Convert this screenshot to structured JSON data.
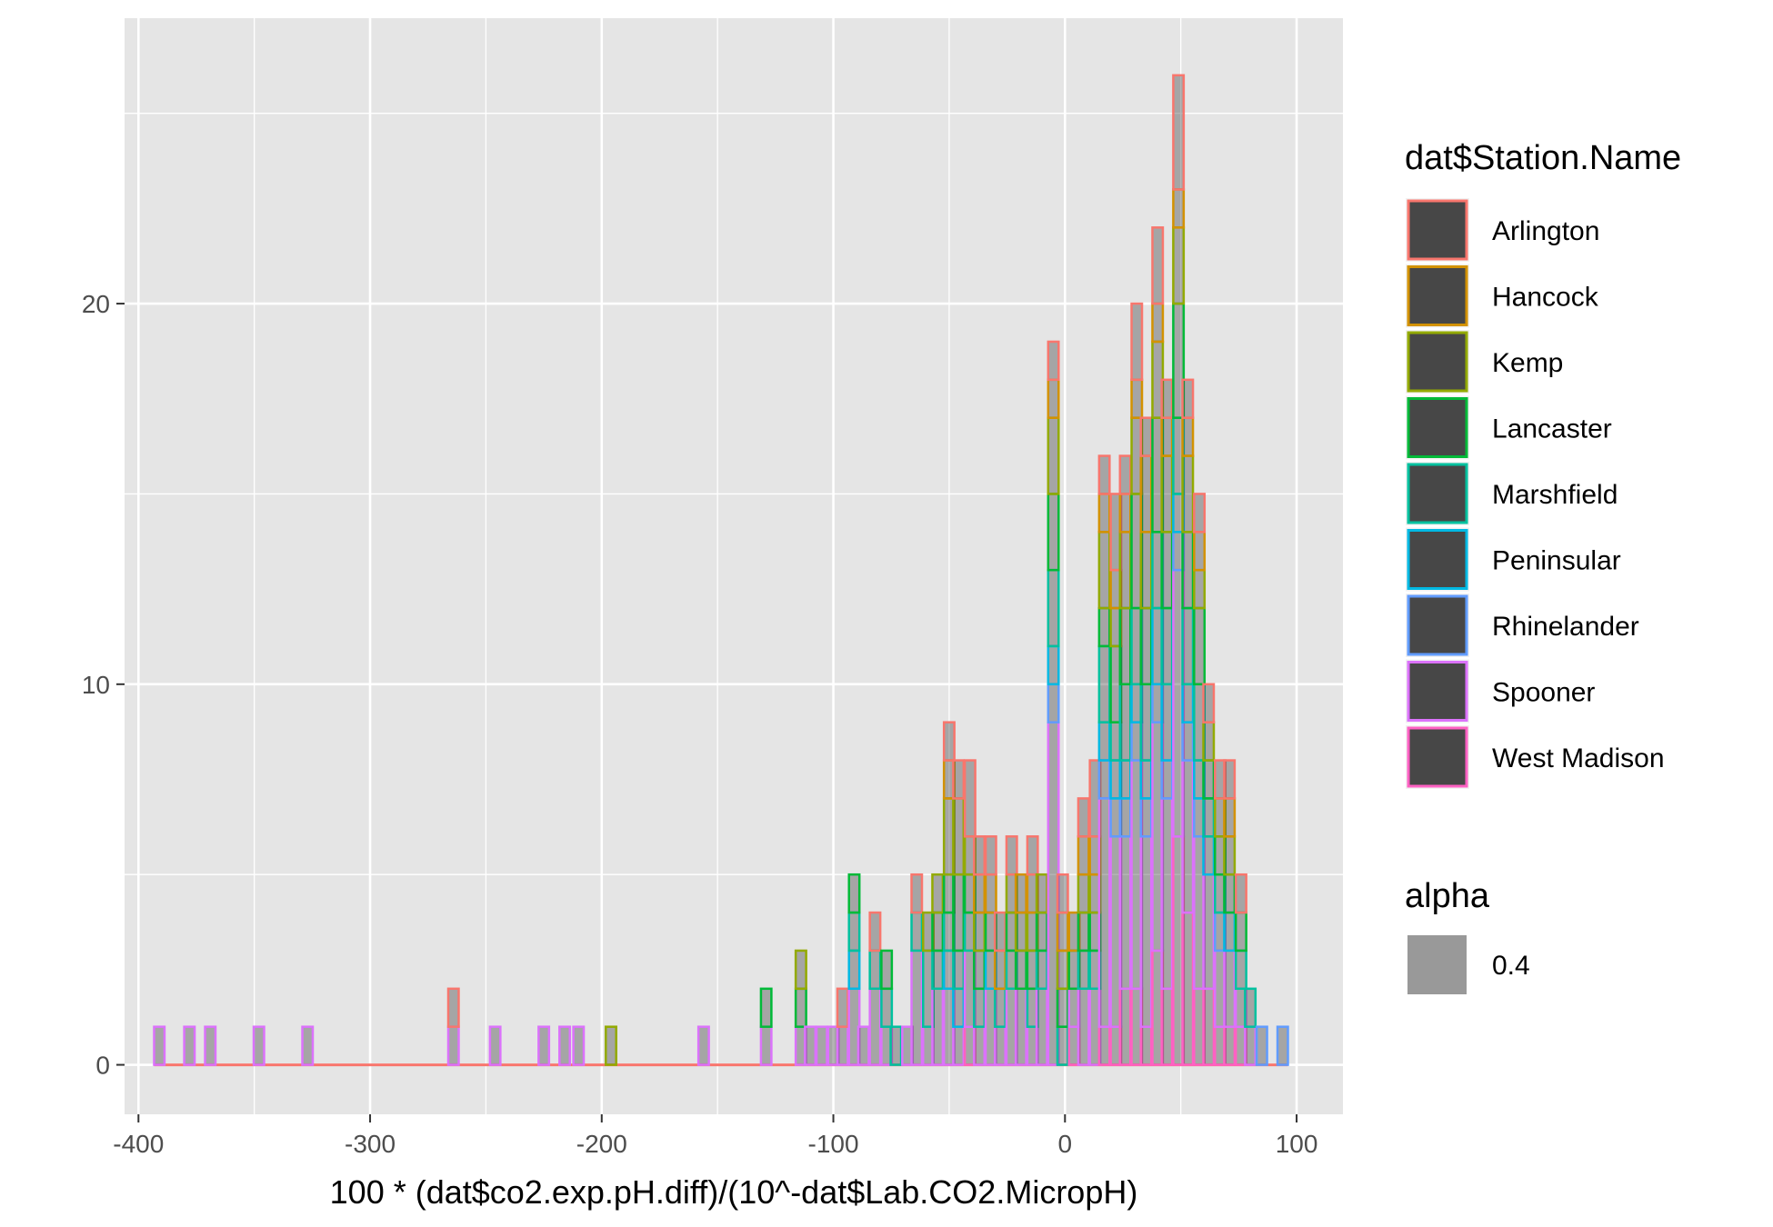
{
  "chart_data": {
    "type": "bar",
    "subtype": "stacked-histogram",
    "xlabel": "100 * (dat$co2.exp.pH.diff)/(10^-dat$Lab.CO2.MicropH)",
    "ylabel": "",
    "xlim": [
      -406,
      120
    ],
    "ylim": [
      -1.3,
      27.5
    ],
    "x_ticks": [
      -400,
      -300,
      -200,
      -100,
      0,
      100
    ],
    "x_tick_labels": [
      "-400",
      "-300",
      "-200",
      "-100",
      "0",
      "100"
    ],
    "y_ticks": [
      0,
      10,
      20
    ],
    "y_tick_labels": [
      "0",
      "10",
      "20"
    ],
    "bin_width": 4.5,
    "grid": true,
    "legend_position": "right",
    "background": "#e5e5e5",
    "fill_color": "#474747",
    "legend": {
      "color_title": "dat$Station.Name",
      "alpha_title": "alpha",
      "alpha_value": "0.4"
    },
    "series": [
      {
        "name": "Arlington",
        "color": "#f8766d"
      },
      {
        "name": "Hancock",
        "color": "#d39200"
      },
      {
        "name": "Kemp",
        "color": "#93aa00"
      },
      {
        "name": "Lancaster",
        "color": "#00ba38"
      },
      {
        "name": "Marshfield",
        "color": "#00c19f"
      },
      {
        "name": "Peninsular",
        "color": "#00b9e3"
      },
      {
        "name": "Rhinelander",
        "color": "#619cff"
      },
      {
        "name": "Spooner",
        "color": "#db72fb"
      },
      {
        "name": "West Madison",
        "color": "#ff61c3"
      }
    ],
    "bins": [
      {
        "x": -391,
        "counts": [
          0,
          0,
          0,
          0,
          0,
          0,
          0,
          1,
          0
        ]
      },
      {
        "x": -378,
        "counts": [
          0,
          0,
          0,
          0,
          0,
          0,
          0,
          1,
          0
        ]
      },
      {
        "x": -369,
        "counts": [
          0,
          0,
          0,
          0,
          0,
          0,
          0,
          1,
          0
        ]
      },
      {
        "x": -348,
        "counts": [
          0,
          0,
          0,
          0,
          0,
          0,
          0,
          1,
          0
        ]
      },
      {
        "x": -327,
        "counts": [
          0,
          0,
          0,
          0,
          0,
          0,
          0,
          1,
          0
        ]
      },
      {
        "x": -264,
        "counts": [
          1,
          0,
          0,
          0,
          0,
          0,
          0,
          1,
          0
        ]
      },
      {
        "x": -246,
        "counts": [
          0,
          0,
          0,
          0,
          0,
          0,
          0,
          1,
          0
        ]
      },
      {
        "x": -225,
        "counts": [
          0,
          0,
          0,
          0,
          0,
          0,
          0,
          1,
          0
        ]
      },
      {
        "x": -216,
        "counts": [
          0,
          0,
          0,
          0,
          0,
          0,
          0,
          1,
          0
        ]
      },
      {
        "x": -210,
        "counts": [
          0,
          0,
          0,
          0,
          0,
          0,
          0,
          1,
          0
        ]
      },
      {
        "x": -196,
        "counts": [
          0,
          0,
          1,
          0,
          0,
          0,
          0,
          0,
          0
        ]
      },
      {
        "x": -156,
        "counts": [
          0,
          0,
          0,
          0,
          0,
          0,
          0,
          1,
          0
        ]
      },
      {
        "x": -129,
        "counts": [
          0,
          0,
          0,
          1,
          0,
          0,
          0,
          1,
          0
        ]
      },
      {
        "x": -114,
        "counts": [
          0,
          0,
          1,
          1,
          0,
          0,
          0,
          1,
          0
        ]
      },
      {
        "x": -110,
        "counts": [
          0,
          0,
          0,
          0,
          0,
          0,
          0,
          1,
          0
        ]
      },
      {
        "x": -105,
        "counts": [
          0,
          0,
          0,
          0,
          0,
          0,
          0,
          1,
          0
        ]
      },
      {
        "x": -100,
        "counts": [
          0,
          0,
          0,
          0,
          0,
          0,
          0,
          1,
          0
        ]
      },
      {
        "x": -96,
        "counts": [
          1,
          0,
          0,
          0,
          0,
          0,
          0,
          1,
          0
        ]
      },
      {
        "x": -91,
        "counts": [
          0,
          0,
          0,
          1,
          1,
          1,
          0,
          2,
          0
        ]
      },
      {
        "x": -87,
        "counts": [
          0,
          0,
          0,
          0,
          0,
          0,
          0,
          1,
          0
        ]
      },
      {
        "x": -82,
        "counts": [
          1,
          0,
          0,
          0,
          1,
          0,
          0,
          2,
          0
        ]
      },
      {
        "x": -77,
        "counts": [
          0,
          0,
          0,
          1,
          1,
          0,
          0,
          1,
          0
        ]
      },
      {
        "x": -73,
        "counts": [
          0,
          0,
          0,
          0,
          1,
          0,
          0,
          0,
          0
        ]
      },
      {
        "x": -68,
        "counts": [
          0,
          0,
          0,
          0,
          0,
          0,
          0,
          1,
          0
        ]
      },
      {
        "x": -64,
        "counts": [
          1,
          0,
          0,
          0,
          1,
          0,
          0,
          3,
          0
        ]
      },
      {
        "x": -59,
        "counts": [
          0,
          0,
          1,
          0,
          2,
          0,
          0,
          1,
          0
        ]
      },
      {
        "x": -55,
        "counts": [
          0,
          0,
          1,
          1,
          1,
          0,
          0,
          2,
          0
        ]
      },
      {
        "x": -50,
        "counts": [
          1,
          1,
          2,
          1,
          1,
          1,
          0,
          2,
          0
        ]
      },
      {
        "x": -46,
        "counts": [
          1,
          0,
          2,
          2,
          1,
          1,
          0,
          1,
          0
        ]
      },
      {
        "x": -41,
        "counts": [
          2,
          0,
          1,
          1,
          1,
          0,
          0,
          2,
          1
        ]
      },
      {
        "x": -37,
        "counts": [
          1,
          1,
          1,
          1,
          1,
          0,
          0,
          1,
          0
        ]
      },
      {
        "x": -32,
        "counts": [
          1,
          1,
          0,
          1,
          0,
          1,
          0,
          2,
          0
        ]
      },
      {
        "x": -28,
        "counts": [
          1,
          1,
          0,
          0,
          1,
          0,
          0,
          1,
          0
        ]
      },
      {
        "x": -23,
        "counts": [
          1,
          0,
          1,
          1,
          1,
          0,
          0,
          2,
          0
        ]
      },
      {
        "x": -19,
        "counts": [
          0,
          1,
          1,
          1,
          0,
          0,
          0,
          2,
          0
        ]
      },
      {
        "x": -14,
        "counts": [
          1,
          1,
          1,
          1,
          1,
          0,
          0,
          1,
          0
        ]
      },
      {
        "x": -10,
        "counts": [
          0,
          0,
          1,
          1,
          1,
          0,
          0,
          2,
          0
        ]
      },
      {
        "x": -5,
        "counts": [
          1,
          1,
          2,
          2,
          2,
          1,
          1,
          9,
          0
        ]
      },
      {
        "x": -1,
        "counts": [
          1,
          1,
          1,
          1,
          1,
          0,
          0,
          0,
          0
        ]
      },
      {
        "x": 4,
        "counts": [
          0,
          1,
          0,
          1,
          0,
          0,
          0,
          1,
          1
        ]
      },
      {
        "x": 8,
        "counts": [
          1,
          1,
          1,
          1,
          1,
          0,
          0,
          2,
          0
        ]
      },
      {
        "x": 13,
        "counts": [
          2,
          1,
          1,
          1,
          1,
          0,
          0,
          2,
          0
        ]
      },
      {
        "x": 17,
        "counts": [
          1,
          1,
          2,
          1,
          2,
          1,
          1,
          6,
          1
        ]
      },
      {
        "x": 22,
        "counts": [
          2,
          1,
          1,
          2,
          1,
          1,
          1,
          5,
          1
        ]
      },
      {
        "x": 26,
        "counts": [
          1,
          1,
          2,
          2,
          2,
          1,
          1,
          4,
          2
        ]
      },
      {
        "x": 31,
        "counts": [
          2,
          1,
          2,
          3,
          2,
          1,
          1,
          6,
          2
        ]
      },
      {
        "x": 35,
        "counts": [
          1,
          2,
          2,
          2,
          2,
          1,
          1,
          5,
          1
        ]
      },
      {
        "x": 40,
        "counts": [
          2,
          1,
          2,
          3,
          2,
          2,
          1,
          6,
          3
        ]
      },
      {
        "x": 44,
        "counts": [
          1,
          1,
          2,
          2,
          2,
          2,
          1,
          5,
          2
        ]
      },
      {
        "x": 49,
        "counts": [
          3,
          1,
          2,
          3,
          2,
          1,
          1,
          7,
          6
        ]
      },
      {
        "x": 53,
        "counts": [
          1,
          1,
          2,
          2,
          2,
          1,
          1,
          4,
          4
        ]
      },
      {
        "x": 58,
        "counts": [
          1,
          1,
          1,
          2,
          2,
          1,
          1,
          4,
          2
        ]
      },
      {
        "x": 62,
        "counts": [
          1,
          0,
          1,
          1,
          1,
          1,
          0,
          3,
          2
        ]
      },
      {
        "x": 67,
        "counts": [
          1,
          0,
          1,
          1,
          1,
          0,
          1,
          2,
          1
        ]
      },
      {
        "x": 71,
        "counts": [
          1,
          1,
          1,
          1,
          0,
          1,
          0,
          2,
          1
        ]
      },
      {
        "x": 76,
        "counts": [
          1,
          0,
          0,
          1,
          1,
          0,
          0,
          1,
          1
        ]
      },
      {
        "x": 80,
        "counts": [
          0,
          0,
          0,
          0,
          1,
          0,
          0,
          1,
          0
        ]
      },
      {
        "x": 85,
        "counts": [
          0,
          0,
          0,
          0,
          0,
          0,
          1,
          0,
          0
        ]
      },
      {
        "x": 94,
        "counts": [
          0,
          0,
          0,
          0,
          0,
          0,
          1,
          0,
          0
        ]
      }
    ]
  }
}
